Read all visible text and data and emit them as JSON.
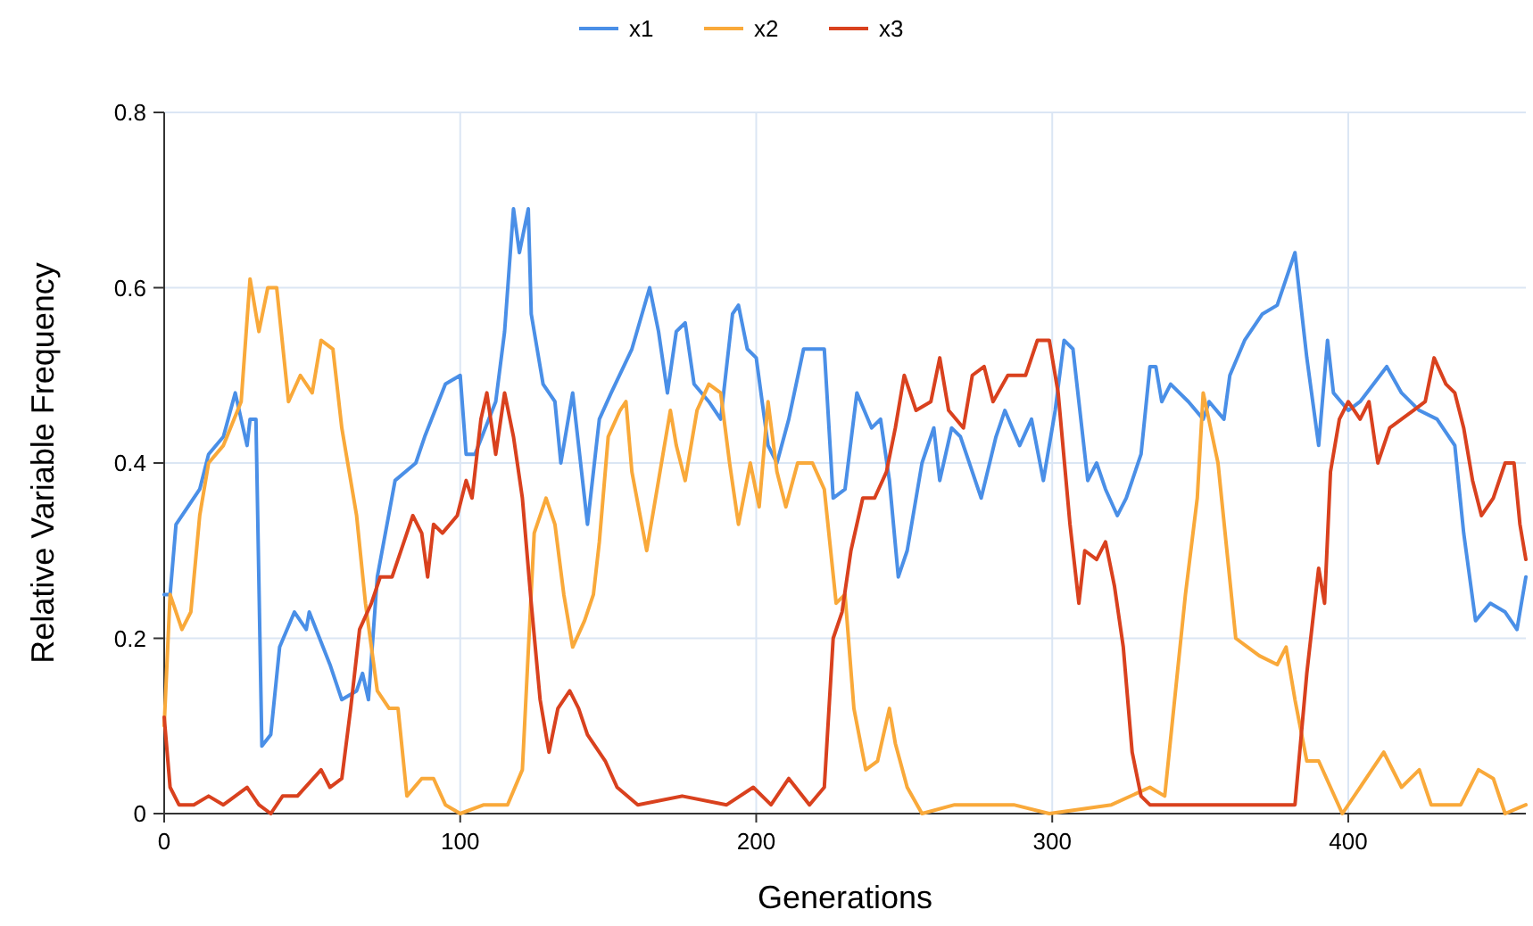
{
  "chart_data": {
    "type": "line",
    "xlabel": "Generations",
    "ylabel": "Relative Variable Frequency",
    "xlim": [
      0,
      460
    ],
    "ylim": [
      0,
      0.8
    ],
    "xticks": [
      0,
      100,
      200,
      300,
      400
    ],
    "yticks": [
      0,
      0.2,
      0.4,
      0.6,
      0.8
    ],
    "grid": true,
    "legend": "top",
    "marker": "none",
    "line_style": "solid",
    "series": [
      {
        "name": "x1",
        "color": "#4a8fe7",
        "x": [
          0,
          2,
          4,
          8,
          12,
          15,
          20,
          24,
          28,
          29,
          31,
          33,
          36,
          39,
          44,
          48,
          49,
          56,
          60,
          65,
          67,
          69,
          72,
          78,
          85,
          88,
          95,
          100,
          102,
          105,
          112,
          115,
          118,
          120,
          123,
          124,
          128,
          132,
          134,
          138,
          143,
          147,
          151,
          158,
          164,
          167,
          170,
          173,
          176,
          179,
          184,
          188,
          192,
          194,
          197,
          200,
          204,
          207,
          211,
          216,
          223,
          226,
          230,
          234,
          239,
          242,
          245,
          248,
          251,
          256,
          260,
          262,
          266,
          269,
          276,
          281,
          284,
          289,
          293,
          297,
          301,
          304,
          307,
          309,
          312,
          315,
          318,
          322,
          325,
          330,
          333,
          335,
          337,
          340,
          346,
          351,
          353,
          358,
          360,
          365,
          371,
          376,
          382,
          386,
          390,
          393,
          395,
          400,
          404,
          413,
          418,
          424,
          430,
          436,
          439,
          443,
          448,
          453,
          457,
          460
        ],
        "values": [
          0.25,
          0.25,
          0.33,
          0.35,
          0.37,
          0.41,
          0.43,
          0.48,
          0.42,
          0.45,
          0.45,
          0.077,
          0.09,
          0.19,
          0.23,
          0.21,
          0.23,
          0.17,
          0.13,
          0.14,
          0.16,
          0.13,
          0.27,
          0.38,
          0.4,
          0.43,
          0.49,
          0.5,
          0.41,
          0.41,
          0.47,
          0.55,
          0.69,
          0.64,
          0.69,
          0.57,
          0.49,
          0.47,
          0.4,
          0.48,
          0.33,
          0.45,
          0.48,
          0.53,
          0.6,
          0.55,
          0.48,
          0.55,
          0.56,
          0.49,
          0.47,
          0.45,
          0.57,
          0.58,
          0.53,
          0.52,
          0.42,
          0.4,
          0.45,
          0.53,
          0.53,
          0.36,
          0.37,
          0.48,
          0.44,
          0.45,
          0.38,
          0.27,
          0.3,
          0.4,
          0.44,
          0.38,
          0.44,
          0.43,
          0.36,
          0.43,
          0.46,
          0.42,
          0.45,
          0.38,
          0.46,
          0.54,
          0.53,
          0.47,
          0.38,
          0.4,
          0.37,
          0.34,
          0.36,
          0.41,
          0.51,
          0.51,
          0.47,
          0.49,
          0.47,
          0.45,
          0.47,
          0.45,
          0.5,
          0.54,
          0.57,
          0.58,
          0.64,
          0.52,
          0.42,
          0.54,
          0.48,
          0.46,
          0.47,
          0.51,
          0.48,
          0.46,
          0.45,
          0.42,
          0.32,
          0.22,
          0.24,
          0.23,
          0.21,
          0.27
        ]
      },
      {
        "name": "x2",
        "color": "#f9a93a",
        "x": [
          0,
          2,
          6,
          9,
          12,
          15,
          20,
          26,
          29,
          32,
          35,
          38,
          42,
          46,
          50,
          53,
          57,
          60,
          65,
          68,
          72,
          76,
          79,
          82,
          87,
          91,
          95,
          100,
          108,
          116,
          121,
          125,
          129,
          132,
          135,
          138,
          142,
          145,
          147,
          150,
          154,
          156,
          158,
          163,
          167,
          171,
          173,
          176,
          180,
          184,
          188,
          191,
          194,
          198,
          201,
          204,
          207,
          210,
          214,
          219,
          223,
          227,
          230,
          233,
          237,
          241,
          245,
          247,
          251,
          256,
          267,
          287,
          299,
          320,
          333,
          338,
          345,
          349,
          351,
          356,
          359,
          362,
          366,
          370,
          376,
          379,
          382,
          386,
          390,
          394,
          398,
          404,
          412,
          418,
          424,
          428,
          438,
          444,
          449,
          453,
          460
        ],
        "values": [
          0.1,
          0.25,
          0.21,
          0.23,
          0.34,
          0.4,
          0.42,
          0.47,
          0.61,
          0.55,
          0.6,
          0.6,
          0.47,
          0.5,
          0.48,
          0.54,
          0.53,
          0.44,
          0.34,
          0.24,
          0.14,
          0.12,
          0.12,
          0.02,
          0.04,
          0.04,
          0.01,
          0,
          0.01,
          0.01,
          0.05,
          0.32,
          0.36,
          0.33,
          0.25,
          0.19,
          0.22,
          0.25,
          0.31,
          0.43,
          0.46,
          0.47,
          0.39,
          0.3,
          0.38,
          0.46,
          0.42,
          0.38,
          0.46,
          0.49,
          0.48,
          0.4,
          0.33,
          0.4,
          0.35,
          0.47,
          0.39,
          0.35,
          0.4,
          0.4,
          0.37,
          0.24,
          0.25,
          0.12,
          0.05,
          0.06,
          0.12,
          0.08,
          0.03,
          0,
          0.01,
          0.01,
          0,
          0.01,
          0.03,
          0.02,
          0.25,
          0.36,
          0.48,
          0.4,
          0.3,
          0.2,
          0.19,
          0.18,
          0.17,
          0.19,
          0.13,
          0.06,
          0.06,
          0.03,
          0,
          0.03,
          0.07,
          0.03,
          0.05,
          0.01,
          0.01,
          0.05,
          0.04,
          0,
          0.01
        ]
      },
      {
        "name": "x3",
        "color": "#d9411e",
        "x": [
          0,
          2,
          5,
          10,
          15,
          20,
          28,
          32,
          36,
          40,
          45,
          53,
          56,
          60,
          63,
          66,
          70,
          73,
          77,
          81,
          84,
          87,
          89,
          91,
          94,
          99,
          102,
          104,
          107,
          109,
          112,
          115,
          118,
          121,
          124,
          127,
          130,
          133,
          137,
          140,
          143,
          149,
          153,
          160,
          175,
          190,
          199,
          205,
          211,
          218,
          223,
          226,
          229,
          232,
          236,
          240,
          244,
          247,
          250,
          254,
          259,
          262,
          265,
          270,
          273,
          277,
          280,
          285,
          291,
          295,
          299,
          302,
          306,
          309,
          311,
          315,
          318,
          321,
          324,
          327,
          330,
          333,
          345,
          360,
          375,
          382,
          386,
          390,
          392,
          394,
          397,
          400,
          404,
          407,
          410,
          414,
          418,
          422,
          426,
          429,
          433,
          436,
          439,
          442,
          445,
          449,
          453,
          456,
          458,
          460
        ],
        "values": [
          0.11,
          0.03,
          0.01,
          0.01,
          0.02,
          0.01,
          0.03,
          0.01,
          0,
          0.02,
          0.02,
          0.05,
          0.03,
          0.04,
          0.12,
          0.21,
          0.24,
          0.27,
          0.27,
          0.31,
          0.34,
          0.32,
          0.27,
          0.33,
          0.32,
          0.34,
          0.38,
          0.36,
          0.45,
          0.48,
          0.41,
          0.48,
          0.43,
          0.36,
          0.24,
          0.13,
          0.07,
          0.12,
          0.14,
          0.12,
          0.09,
          0.06,
          0.03,
          0.01,
          0.02,
          0.01,
          0.03,
          0.01,
          0.04,
          0.01,
          0.03,
          0.2,
          0.23,
          0.3,
          0.36,
          0.36,
          0.39,
          0.44,
          0.5,
          0.46,
          0.47,
          0.52,
          0.46,
          0.44,
          0.5,
          0.51,
          0.47,
          0.5,
          0.5,
          0.54,
          0.54,
          0.48,
          0.33,
          0.24,
          0.3,
          0.29,
          0.31,
          0.26,
          0.19,
          0.07,
          0.02,
          0.01,
          0.01,
          0.01,
          0.01,
          0.01,
          0.16,
          0.28,
          0.24,
          0.39,
          0.45,
          0.47,
          0.45,
          0.47,
          0.4,
          0.44,
          0.45,
          0.46,
          0.47,
          0.52,
          0.49,
          0.48,
          0.44,
          0.38,
          0.34,
          0.36,
          0.4,
          0.4,
          0.33,
          0.29
        ]
      }
    ]
  }
}
